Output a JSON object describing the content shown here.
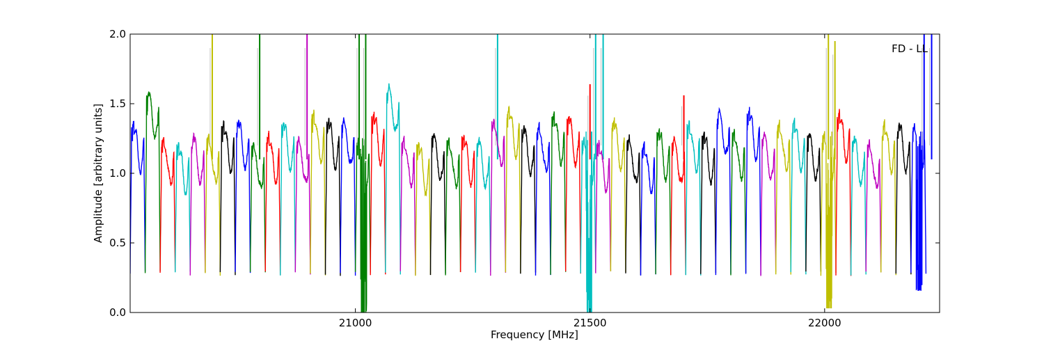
{
  "chart_data": {
    "type": "line",
    "title": "",
    "panel_label": "FD - LL",
    "xlabel": "Frequency [MHz]",
    "ylabel": "Amplitude [arbitrary units]",
    "xlim": [
      20520,
      22245
    ],
    "ylim": [
      0,
      2.0
    ],
    "x_ticks": [
      21000,
      21500,
      22000
    ],
    "x_tick_labels": [
      "21000",
      "21500",
      "22000"
    ],
    "y_ticks": [
      0.0,
      0.5,
      1.0,
      1.5,
      2.0
    ],
    "y_tick_labels": [
      "0.0",
      "0.5",
      "1.0",
      "1.5",
      "2.0"
    ],
    "grid": false,
    "colors": [
      "#0000ff",
      "#008000",
      "#ff0000",
      "#00bfbf",
      "#bf00bf",
      "#bfbf00",
      "#000000"
    ],
    "overlay_color": "#c0c0c0",
    "band_width_mhz": 32,
    "bands": [
      {
        "start": 20520,
        "peak": 1.36,
        "color_index": 0
      },
      {
        "start": 20552,
        "peak": 1.58,
        "color_index": 1
      },
      {
        "start": 20584,
        "peak": 1.25,
        "color_index": 2
      },
      {
        "start": 20616,
        "peak": 1.21,
        "color_index": 3
      },
      {
        "start": 20648,
        "peak": 1.26,
        "color_index": 4
      },
      {
        "start": 20680,
        "peak": 1.26,
        "color_index": 5,
        "spikes": [
          {
            "x": 20695,
            "y": 2.0
          }
        ]
      },
      {
        "start": 20712,
        "peak": 1.36,
        "color_index": 6
      },
      {
        "start": 20744,
        "peak": 1.37,
        "color_index": 0
      },
      {
        "start": 20776,
        "peak": 1.21,
        "color_index": 1,
        "spikes": [
          {
            "x": 20796,
            "y": 2.0
          }
        ]
      },
      {
        "start": 20808,
        "peak": 1.28,
        "color_index": 2
      },
      {
        "start": 20840,
        "peak": 1.36,
        "color_index": 3
      },
      {
        "start": 20872,
        "peak": 1.25,
        "color_index": 4,
        "spikes": [
          {
            "x": 20897,
            "y": 2.0
          }
        ]
      },
      {
        "start": 20904,
        "peak": 1.43,
        "color_index": 5
      },
      {
        "start": 20936,
        "peak": 1.38,
        "color_index": 6
      },
      {
        "start": 20968,
        "peak": 1.38,
        "color_index": 0
      },
      {
        "start": 21000,
        "peak": 1.25,
        "color_index": 1,
        "spikes": [
          {
            "x": 21008,
            "y": 2.0
          },
          {
            "x": 21022,
            "y": 2.0
          }
        ],
        "dip": 0.0
      },
      {
        "start": 21032,
        "peak": 1.42,
        "color_index": 2
      },
      {
        "start": 21064,
        "peak": 1.62,
        "color_index": 3
      },
      {
        "start": 21096,
        "peak": 1.25,
        "color_index": 4
      },
      {
        "start": 21128,
        "peak": 1.21,
        "color_index": 5
      },
      {
        "start": 21160,
        "peak": 1.27,
        "color_index": 6
      },
      {
        "start": 21192,
        "peak": 1.24,
        "color_index": 1
      },
      {
        "start": 21224,
        "peak": 1.27,
        "color_index": 2
      },
      {
        "start": 21256,
        "peak": 1.23,
        "color_index": 3,
        "spikes": [
          {
            "x": 21303,
            "y": 2.0
          }
        ]
      },
      {
        "start": 21288,
        "peak": 1.38,
        "color_index": 4
      },
      {
        "start": 21320,
        "peak": 1.47,
        "color_index": 5
      },
      {
        "start": 21352,
        "peak": 1.32,
        "color_index": 6
      },
      {
        "start": 21384,
        "peak": 1.34,
        "color_index": 0
      },
      {
        "start": 21416,
        "peak": 1.42,
        "color_index": 1
      },
      {
        "start": 21448,
        "peak": 1.4,
        "color_index": 2,
        "spikes": [
          {
            "x": 21500,
            "y": 1.64
          }
        ]
      },
      {
        "start": 21480,
        "peak": 1.24,
        "color_index": 3,
        "spikes": [
          {
            "x": 21512,
            "y": 2.0
          },
          {
            "x": 21528,
            "y": 2.0
          }
        ],
        "dip": 0.0
      },
      {
        "start": 21512,
        "peak": 1.22,
        "color_index": 4
      },
      {
        "start": 21544,
        "peak": 1.37,
        "color_index": 5
      },
      {
        "start": 21576,
        "peak": 1.25,
        "color_index": 6
      },
      {
        "start": 21608,
        "peak": 1.21,
        "color_index": 0
      },
      {
        "start": 21640,
        "peak": 1.3,
        "color_index": 1
      },
      {
        "start": 21672,
        "peak": 1.25,
        "color_index": 2,
        "spikes": [
          {
            "x": 21700,
            "y": 1.56
          }
        ]
      },
      {
        "start": 21704,
        "peak": 1.36,
        "color_index": 3
      },
      {
        "start": 21736,
        "peak": 1.28,
        "color_index": 6
      },
      {
        "start": 21768,
        "peak": 1.45,
        "color_index": 0
      },
      {
        "start": 21800,
        "peak": 1.3,
        "color_index": 1
      },
      {
        "start": 21832,
        "peak": 1.45,
        "color_index": 0
      },
      {
        "start": 21864,
        "peak": 1.28,
        "color_index": 4
      },
      {
        "start": 21896,
        "peak": 1.36,
        "color_index": 5
      },
      {
        "start": 21928,
        "peak": 1.37,
        "color_index": 3
      },
      {
        "start": 21960,
        "peak": 1.28,
        "color_index": 6
      },
      {
        "start": 21992,
        "peak": 1.28,
        "color_index": 5,
        "spikes": [
          {
            "x": 22008,
            "y": 2.0
          },
          {
            "x": 22022,
            "y": 1.95
          }
        ],
        "dip": 0.03
      },
      {
        "start": 22024,
        "peak": 1.44,
        "color_index": 2
      },
      {
        "start": 22056,
        "peak": 1.25,
        "color_index": 3
      },
      {
        "start": 22088,
        "peak": 1.22,
        "color_index": 4
      },
      {
        "start": 22120,
        "peak": 1.36,
        "color_index": 5
      },
      {
        "start": 22152,
        "peak": 1.35,
        "color_index": 6
      },
      {
        "start": 22184,
        "peak": 1.34,
        "color_index": 0,
        "spikes": [
          {
            "x": 22212,
            "y": 2.0
          },
          {
            "x": 22228,
            "y": 2.0
          }
        ],
        "dip": 0.16
      }
    ]
  }
}
